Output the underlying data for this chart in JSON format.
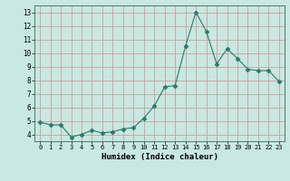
{
  "x": [
    0,
    1,
    2,
    3,
    4,
    5,
    6,
    7,
    8,
    9,
    10,
    11,
    12,
    13,
    14,
    15,
    16,
    17,
    18,
    19,
    20,
    21,
    22,
    23
  ],
  "y": [
    4.9,
    4.7,
    4.7,
    3.8,
    4.0,
    4.3,
    4.1,
    4.2,
    4.4,
    4.5,
    5.2,
    6.1,
    7.5,
    7.6,
    10.5,
    13.0,
    11.6,
    9.2,
    10.3,
    9.6,
    8.8,
    8.7,
    8.7,
    7.9
  ],
  "line_color": "#2a7a6a",
  "marker": "D",
  "marker_size": 2.5,
  "bg_color": "#c8e8e0",
  "grid_color": "#c8a0a0",
  "xlabel": "Humidex (Indice chaleur)",
  "ylim": [
    3.5,
    13.5
  ],
  "xlim": [
    -0.5,
    23.5
  ],
  "yticks": [
    4,
    5,
    6,
    7,
    8,
    9,
    10,
    11,
    12,
    13
  ],
  "xticks": [
    0,
    1,
    2,
    3,
    4,
    5,
    6,
    7,
    8,
    9,
    10,
    11,
    12,
    13,
    14,
    15,
    16,
    17,
    18,
    19,
    20,
    21,
    22,
    23
  ]
}
